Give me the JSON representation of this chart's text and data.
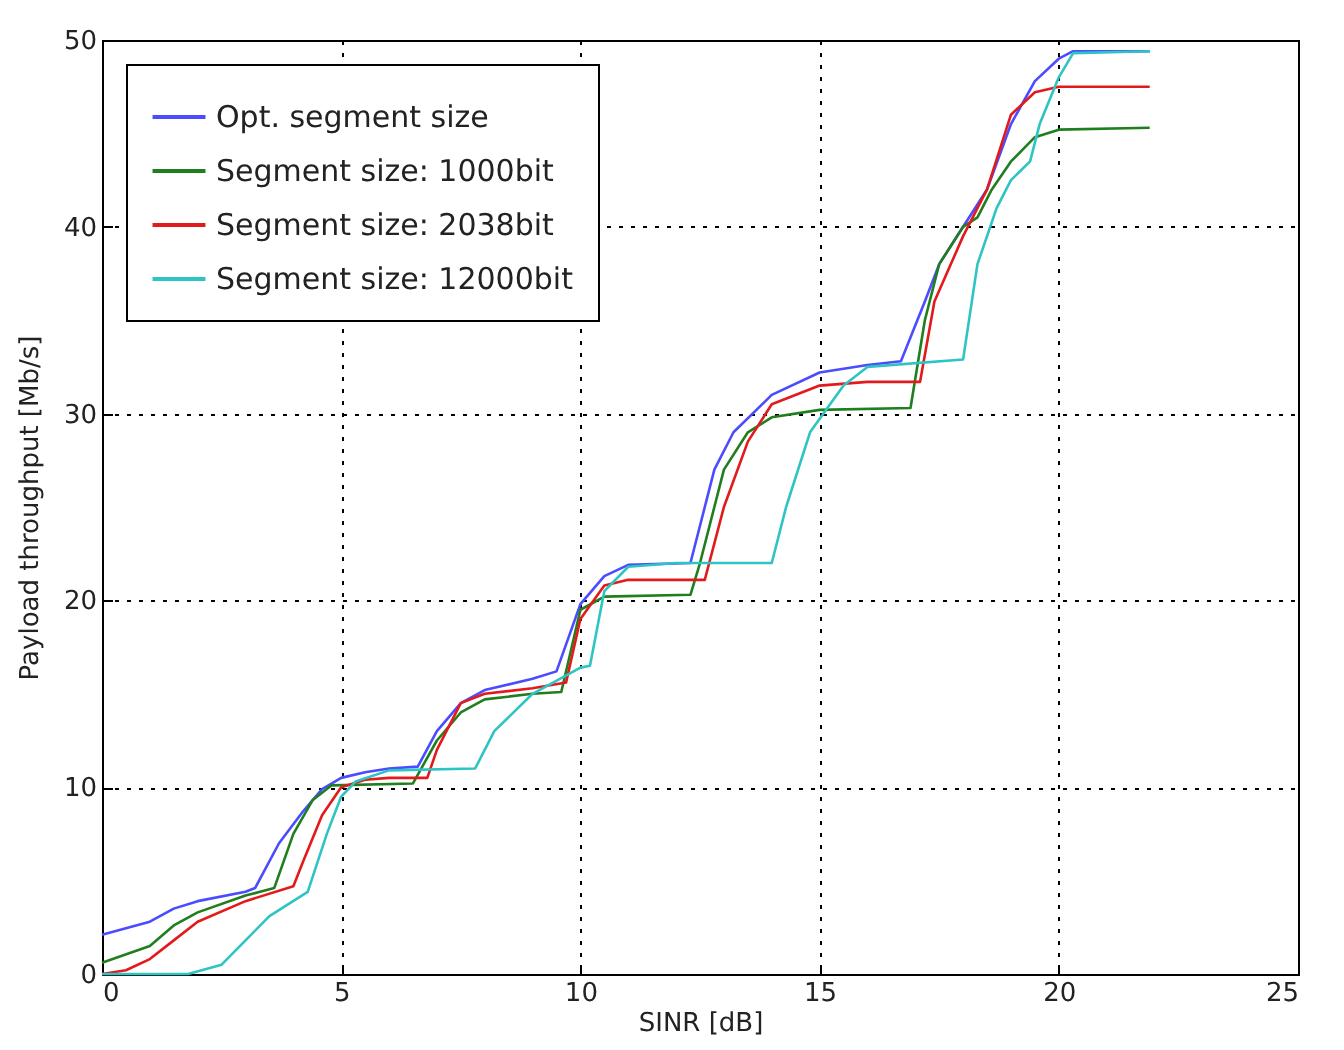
{
  "chart_data": {
    "type": "line",
    "xlabel": "SINR [dB]",
    "ylabel": "Payload throughput [Mb/s]",
    "xlim": [
      0,
      25
    ],
    "ylim": [
      0,
      50
    ],
    "xticks": [
      0,
      5,
      10,
      15,
      20,
      25
    ],
    "yticks": [
      0,
      10,
      20,
      30,
      40,
      50
    ],
    "grid": true,
    "legend": "top left",
    "line_style": "solid",
    "marker": "none",
    "series": [
      {
        "name": "Opt. segment size",
        "color": "#4b4bff",
        "x": [
          0,
          1,
          1.5,
          2,
          3,
          3.2,
          3.7,
          4.2,
          4.6,
          5,
          5.5,
          6,
          6.6,
          7,
          7.5,
          8,
          9,
          9.5,
          10,
          10.5,
          11,
          12.3,
          12.8,
          13.2,
          14,
          15,
          16,
          16.7,
          17.2,
          17.5,
          18,
          18.5,
          19,
          19.5,
          20,
          20.3,
          21.9
        ],
        "values": [
          2.1,
          2.8,
          3.5,
          3.9,
          4.4,
          4.6,
          7,
          8.7,
          9.9,
          10.5,
          10.8,
          11,
          11.1,
          13,
          14.5,
          15.2,
          15.8,
          16.2,
          19.8,
          21.3,
          21.9,
          22,
          27,
          29,
          31,
          32.2,
          32.6,
          32.8,
          36,
          38,
          40,
          42,
          45.5,
          47.8,
          49,
          49.4,
          49.4
        ]
      },
      {
        "name": "Segment size: 1000bit",
        "color": "#1f7f1f",
        "x": [
          0,
          1,
          1.5,
          2,
          3,
          3.6,
          4,
          4.4,
          4.8,
          6.5,
          7,
          7.5,
          8,
          9,
          9.6,
          10,
          10.5,
          12.3,
          12.5,
          13,
          13.5,
          14,
          15,
          16.9,
          17.2,
          17.5,
          18,
          18.3,
          18.6,
          19,
          19.5,
          20,
          21.9
        ],
        "values": [
          0.6,
          1.5,
          2.6,
          3.3,
          4.2,
          4.6,
          7.5,
          9.3,
          10.1,
          10.2,
          12.5,
          14,
          14.7,
          15,
          15.1,
          19.5,
          20.2,
          20.3,
          22,
          27,
          29,
          29.8,
          30.2,
          30.3,
          35,
          38,
          40,
          40.5,
          42,
          43.5,
          44.8,
          45.2,
          45.3
        ]
      },
      {
        "name": "Segment size: 2038bit",
        "color": "#e31a1c",
        "x": [
          0,
          0.5,
          1,
          1.5,
          2,
          3,
          4,
          4.2,
          4.6,
          5,
          5.5,
          6,
          6.8,
          7,
          7.5,
          8,
          9,
          9.7,
          10,
          10.5,
          11,
          12.6,
          13,
          13.5,
          14,
          15,
          16,
          17.1,
          17.4,
          18,
          18.5,
          19,
          19.5,
          20,
          21.9
        ],
        "values": [
          0,
          0.2,
          0.8,
          1.8,
          2.8,
          3.9,
          4.7,
          6,
          8.5,
          10,
          10.4,
          10.5,
          10.5,
          12,
          14.5,
          15,
          15.3,
          15.6,
          19,
          20.8,
          21.1,
          21.1,
          25,
          28.5,
          30.5,
          31.5,
          31.7,
          31.7,
          36,
          39.5,
          42,
          46,
          47.2,
          47.5,
          47.5
        ]
      },
      {
        "name": "Segment size: 12000bit",
        "color": "#2ec4c4",
        "x": [
          0,
          1.8,
          2.5,
          3,
          3.5,
          4.3,
          4.7,
          5,
          5.3,
          6,
          7.8,
          8.2,
          9,
          10,
          10.2,
          10.5,
          11,
          12,
          14,
          14.3,
          14.8,
          15.5,
          16,
          18,
          18.3,
          18.7,
          19,
          19.4,
          19.6,
          20,
          20.3,
          21.9
        ],
        "values": [
          0,
          0,
          0.5,
          1.8,
          3.1,
          4.4,
          7.5,
          9.5,
          10.3,
          10.9,
          11,
          13,
          15,
          16.4,
          16.5,
          20.5,
          21.8,
          22,
          22,
          25,
          29,
          31.5,
          32.5,
          32.9,
          38,
          41,
          42.5,
          43.5,
          45.5,
          48,
          49.3,
          49.4
        ]
      }
    ]
  }
}
